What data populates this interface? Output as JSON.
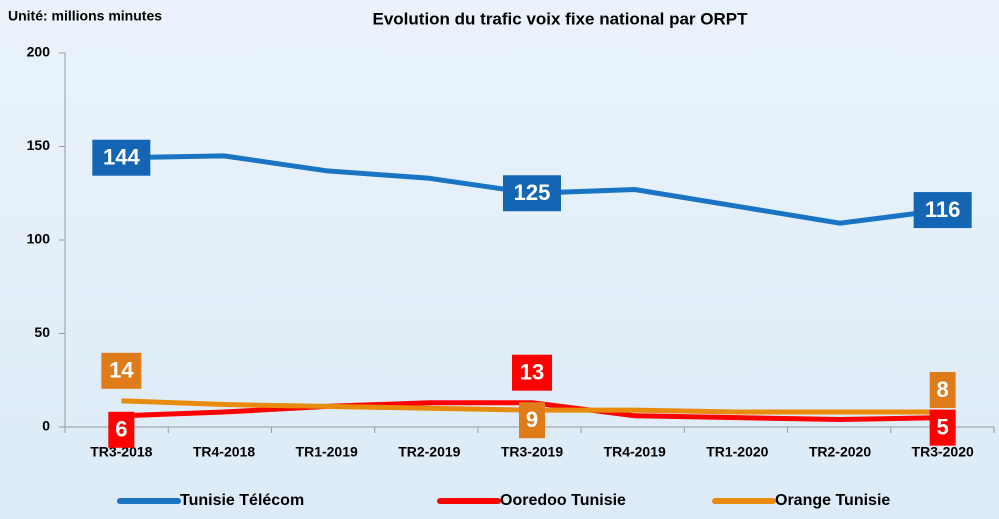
{
  "chart_data": {
    "type": "line",
    "title": "Evolution du trafic voix fixe national par ORPT",
    "subtitle": "Unité: millions minutes",
    "categories": [
      "TR3-2018",
      "TR4-2018",
      "TR1-2019",
      "TR2-2019",
      "TR3-2019",
      "TR4-2019",
      "TR1-2020",
      "TR2-2020",
      "TR3-2020"
    ],
    "series": [
      {
        "name": "Tunisie Télécom",
        "color": "#1a74c4",
        "label_color": "#1565b5",
        "values": [
          144,
          145,
          137,
          133,
          125,
          127,
          118,
          109,
          116
        ]
      },
      {
        "name": "Ooredoo Tunisie",
        "color": "#ff0000",
        "label_color": "#ff0000",
        "values": [
          6,
          8,
          11,
          13,
          13,
          6,
          5,
          4,
          5
        ]
      },
      {
        "name": "Orange Tunisie",
        "color": "#e88b0c",
        "label_color": "#e07b1a",
        "values": [
          14,
          12,
          11,
          10,
          9,
          9,
          8,
          8,
          8
        ]
      }
    ],
    "label_indices": [
      0,
      4,
      8
    ],
    "ylim": [
      0,
      200
    ],
    "yticks": [
      0,
      50,
      100,
      150,
      200
    ],
    "legend": "bottom"
  }
}
